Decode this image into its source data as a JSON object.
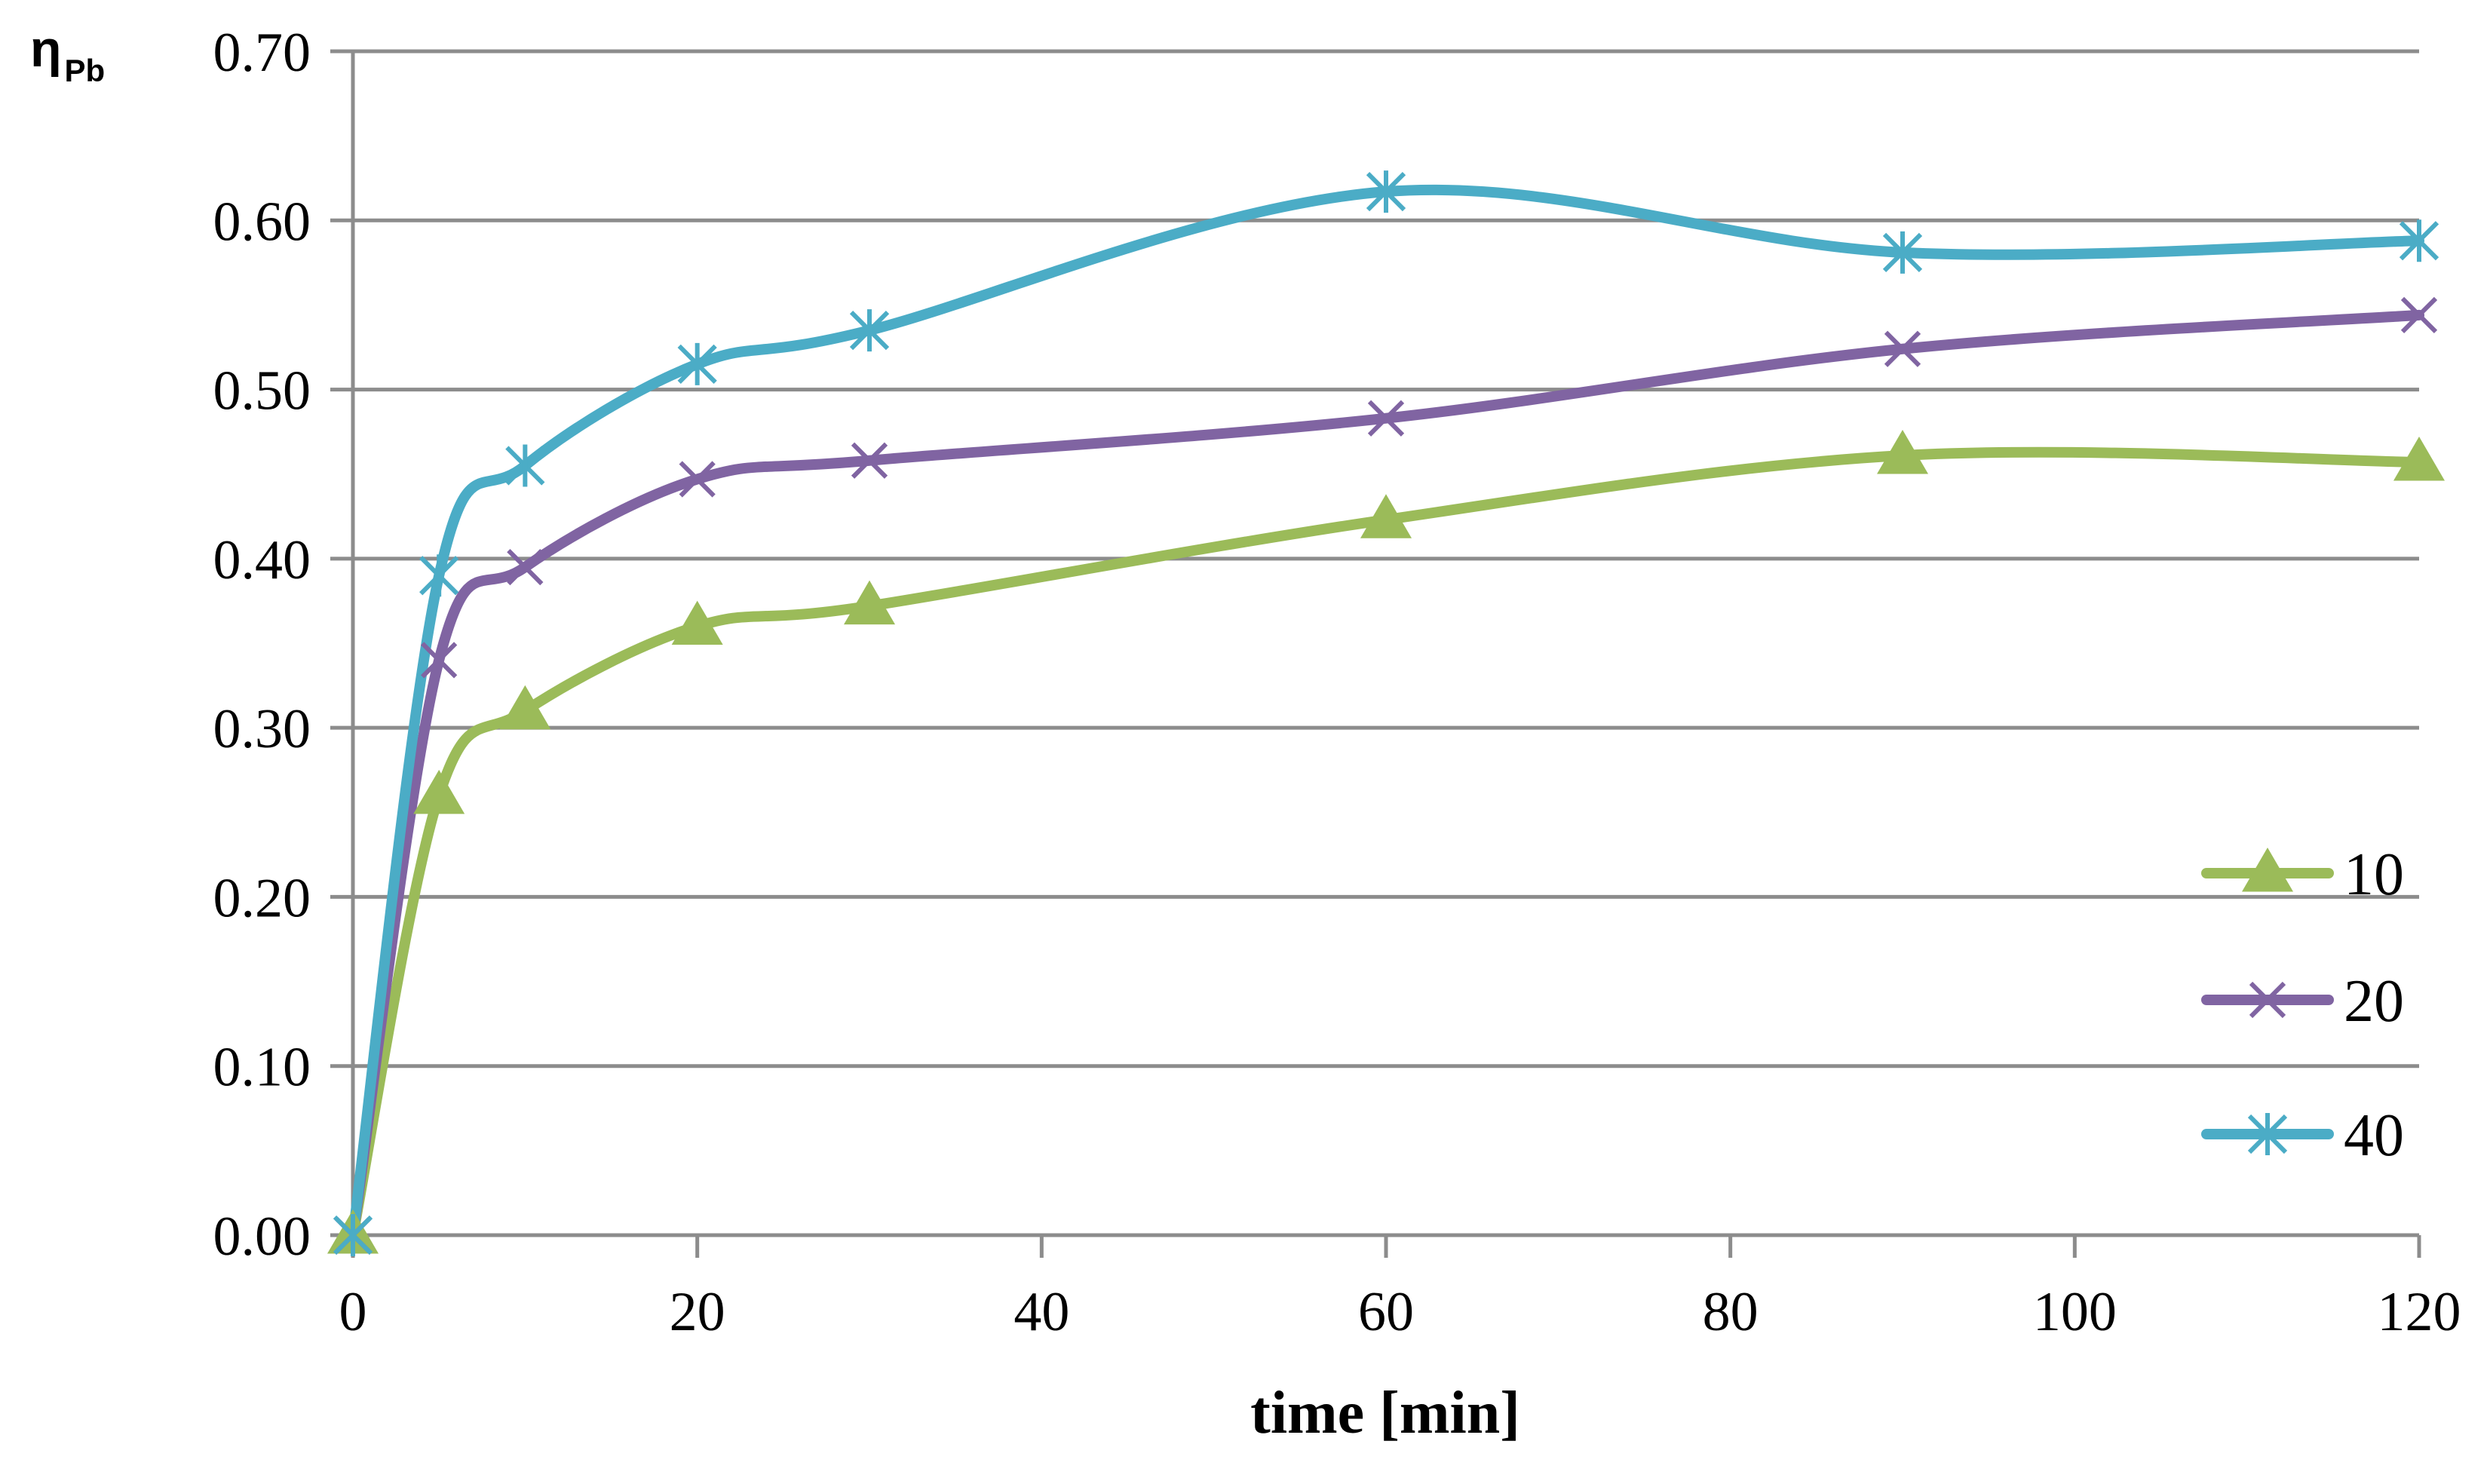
{
  "chart_data": {
    "type": "line",
    "title": "",
    "xlabel": "time [min]",
    "ylabel": "η",
    "ylabel_subscript": "Pb",
    "xlim": [
      0,
      120
    ],
    "ylim": [
      0,
      0.7
    ],
    "x_ticks": [
      0,
      20,
      40,
      60,
      80,
      100,
      120
    ],
    "x_tick_labels": [
      "0",
      "20",
      "40",
      "60",
      "80",
      "100",
      "120"
    ],
    "y_ticks": [
      0,
      0.1,
      0.2,
      0.3,
      0.4,
      0.5,
      0.6,
      0.7
    ],
    "y_tick_labels": [
      "0.00",
      "0.10",
      "0.20",
      "0.30",
      "0.40",
      "0.50",
      "0.60",
      "0.70"
    ],
    "grid": "horizontal",
    "legend_position": "right",
    "smooth": true,
    "x": [
      0,
      5,
      10,
      20,
      30,
      60,
      90,
      120
    ],
    "series": [
      {
        "name": "10",
        "marker": "triangle",
        "color": "#9BBB59",
        "values": [
          0.0,
          0.26,
          0.31,
          0.36,
          0.372,
          0.423,
          0.461,
          0.457
        ]
      },
      {
        "name": "20",
        "marker": "x",
        "color": "#8064A2",
        "values": [
          0.0,
          0.34,
          0.395,
          0.447,
          0.458,
          0.483,
          0.524,
          0.544
        ]
      },
      {
        "name": "40",
        "marker": "asterisk",
        "color": "#4BACC6",
        "values": [
          0.0,
          0.39,
          0.455,
          0.515,
          0.535,
          0.617,
          0.581,
          0.588
        ]
      }
    ]
  }
}
